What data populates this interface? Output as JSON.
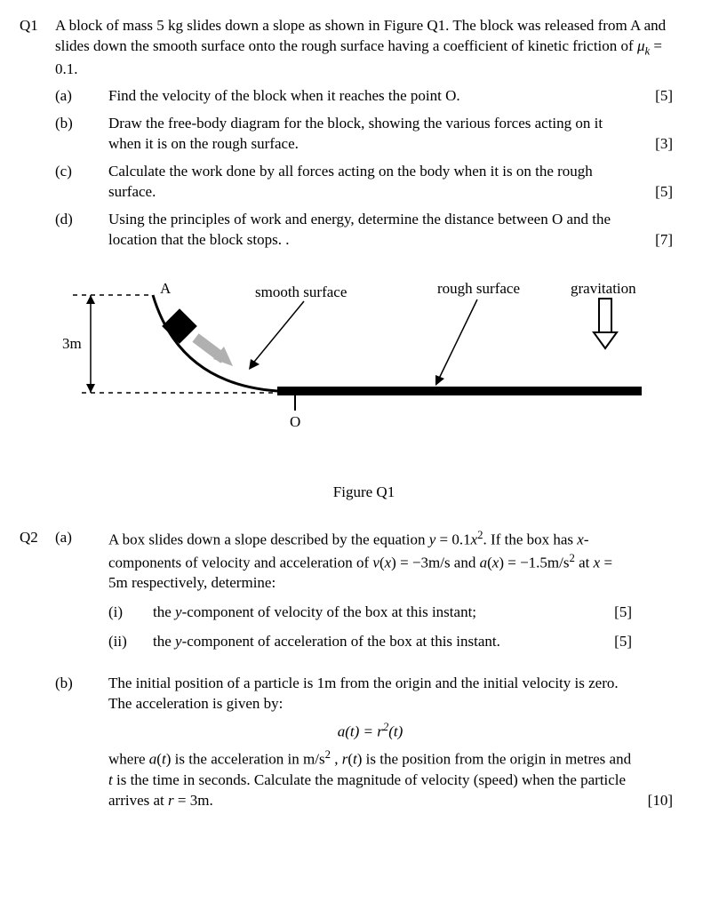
{
  "q1": {
    "number": "Q1",
    "intro_html": "A block of mass 5 kg slides down a slope as shown in Figure Q1.  The block was released from A and slides down the smooth surface onto the rough surface having a coefficient of kinetic friction of <span class='mi'>μ<sub>k</sub></span> = 0.1.",
    "parts": [
      {
        "label": "(a)",
        "text": "Find the velocity of the block when it reaches the point O.",
        "marks": "[5]"
      },
      {
        "label": "(b)",
        "text": "Draw the free-body diagram for the block, showing the various forces acting on it when it is on the rough surface.",
        "marks": "[3]"
      },
      {
        "label": "(c)",
        "text": "Calculate the work done by all forces acting on the body when it is on the rough surface.",
        "marks": "[5]"
      },
      {
        "label": "(d)",
        "text": "Using the principles of work and energy, determine the distance between O and the location that the block stops.  .",
        "marks": "[7]"
      }
    ],
    "figure": {
      "label_A": "A",
      "label_smooth": "smooth surface",
      "label_rough": "rough surface",
      "label_grav": "gravitation",
      "label_height": "3m",
      "label_O": "O",
      "caption": "Figure Q1",
      "colors": {
        "stroke": "#000000",
        "fill_block": "#000000",
        "fill_arrow": "#b0b0b0"
      }
    }
  },
  "q2": {
    "number": "Q2",
    "a": {
      "label": "(a)",
      "intro_html": "A box slides down a slope described by the equation <span class='mi'>y</span> = 0.1<span class='mi'>x</span><sup>2</sup>.  If the box has <span class='mi'>x</span>-components of velocity and acceleration of <span class='mi'>v</span>(<span class='mi'>x</span>) = −3m/s and <span class='mi'>a</span>(<span class='mi'>x</span>) = −1.5m/s<sup>2</sup> at <span class='mi'>x</span> = 5m respectively, determine:",
      "subs": [
        {
          "label": "(i)",
          "text_html": "the <span class='mi'>y</span>-component of velocity of the box at this instant;",
          "marks": "[5]"
        },
        {
          "label": "(ii)",
          "text_html": "the <span class='mi'>y</span>-component of acceleration of the box at this instant.",
          "marks": "[5]"
        }
      ]
    },
    "b": {
      "label": "(b)",
      "intro": "The initial position of a particle is 1m from the origin and the initial velocity is zero.  The acceleration is given by:",
      "equation_html": "<span class='mi'>a</span>(<span class='mi'>t</span>) = <span class='mi'>r</span><sup>2</sup>(<span class='mi'>t</span>)",
      "after_html": "where <span class='mi'>a</span>(<span class='mi'>t</span>) is the acceleration in m/s<sup>2</sup> , <span class='mi'>r</span>(<span class='mi'>t</span>) is the position from the origin in metres and <span class='mi'>t</span> is the time in seconds.  Calculate the magnitude of velocity (speed) when the particle arrives at <span class='mi'>r</span> = 3m.",
      "marks": "[10]"
    }
  }
}
